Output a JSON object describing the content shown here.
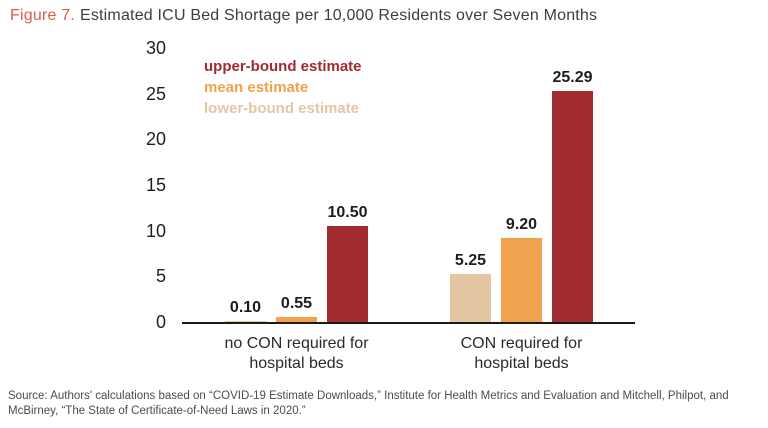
{
  "header": {
    "figure_label": "Figure 7.",
    "title": "Estimated ICU Bed Shortage per 10,000 Residents over Seven Months"
  },
  "footer": {
    "source": "Source: Authors' calculations based on “COVID-19 Estimate Downloads,” Institute for Health Metrics and Evaluation and Mitchell, Philpot, and McBirney, “The State of Certificate-of-Need Laws in 2020.”"
  },
  "colors": {
    "upper_bound": "#a22b30",
    "mean": "#f0a24e",
    "lower_bound": "#e3c7a3",
    "figure_label_accent": "#df5a4e",
    "axis": "#1a1a1a"
  },
  "chart_data": {
    "type": "bar",
    "title": "Estimated ICU Bed Shortage per 10,000 Residents over Seven Months",
    "categories": [
      "no CON required for\nhospital beds",
      "CON required for\nhospital beds"
    ],
    "series": [
      {
        "name": "lower-bound estimate",
        "color": "#e3c7a3",
        "values": [
          0.1,
          5.25
        ]
      },
      {
        "name": "mean estimate",
        "color": "#f0a24e",
        "values": [
          0.55,
          9.2
        ]
      },
      {
        "name": "upper-bound estimate",
        "color": "#a22b30",
        "values": [
          10.5,
          25.29
        ]
      }
    ],
    "data_labels": [
      [
        "0.10",
        "5.25"
      ],
      [
        "0.55",
        "9.20"
      ],
      [
        "10.50",
        "25.29"
      ]
    ],
    "legend": [
      {
        "label": "upper-bound estimate",
        "color": "#a22b30"
      },
      {
        "label": "mean estimate",
        "color": "#f0a24e"
      },
      {
        "label": "lower-bound estimate",
        "color": "#e3c7a3"
      }
    ],
    "xlabel": "",
    "ylabel": "",
    "y_ticks": [
      0,
      5,
      10,
      15,
      20,
      25,
      30
    ],
    "ylim": [
      0,
      30
    ],
    "grid": false,
    "legend_position": "top-left-inside"
  }
}
